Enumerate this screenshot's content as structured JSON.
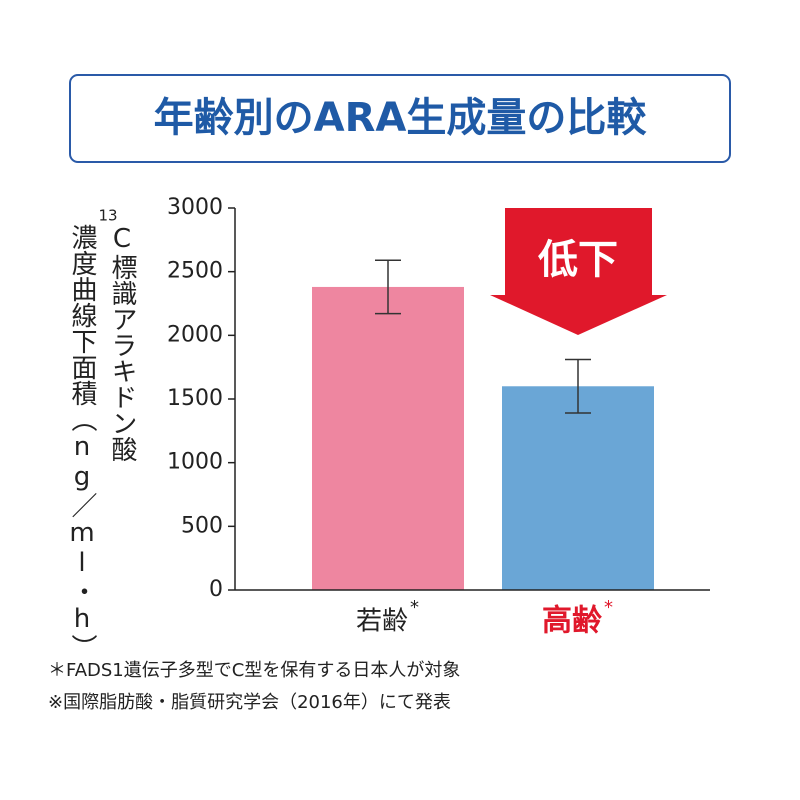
{
  "chart_data": {
    "type": "bar",
    "title": "年齢別のARA生成量の比較",
    "ylabel_sup": "13",
    "ylabel_lines": [
      "C標識アラキドン酸",
      "濃度曲線下面積（ng／ml・h）"
    ],
    "categories": [
      "若齢",
      "高齢"
    ],
    "category_notes": [
      "*",
      "*"
    ],
    "category_colors": [
      "#222222",
      "#e0182b"
    ],
    "values": [
      2380,
      1600
    ],
    "errors": [
      210,
      210
    ],
    "colors": [
      "#ee86a0",
      "#6aa6d6"
    ],
    "ylim": [
      0,
      3000
    ],
    "yticks": [
      0,
      500,
      1000,
      1500,
      2000,
      2500,
      3000
    ],
    "annotation": "低下",
    "annotation_color": "#e0182b",
    "footnotes": [
      "＊FADS1遺伝子多型でC型を保有する日本人が対象",
      "※国際脂肪酸・脂質研究学会（2016年）にて発表"
    ]
  }
}
